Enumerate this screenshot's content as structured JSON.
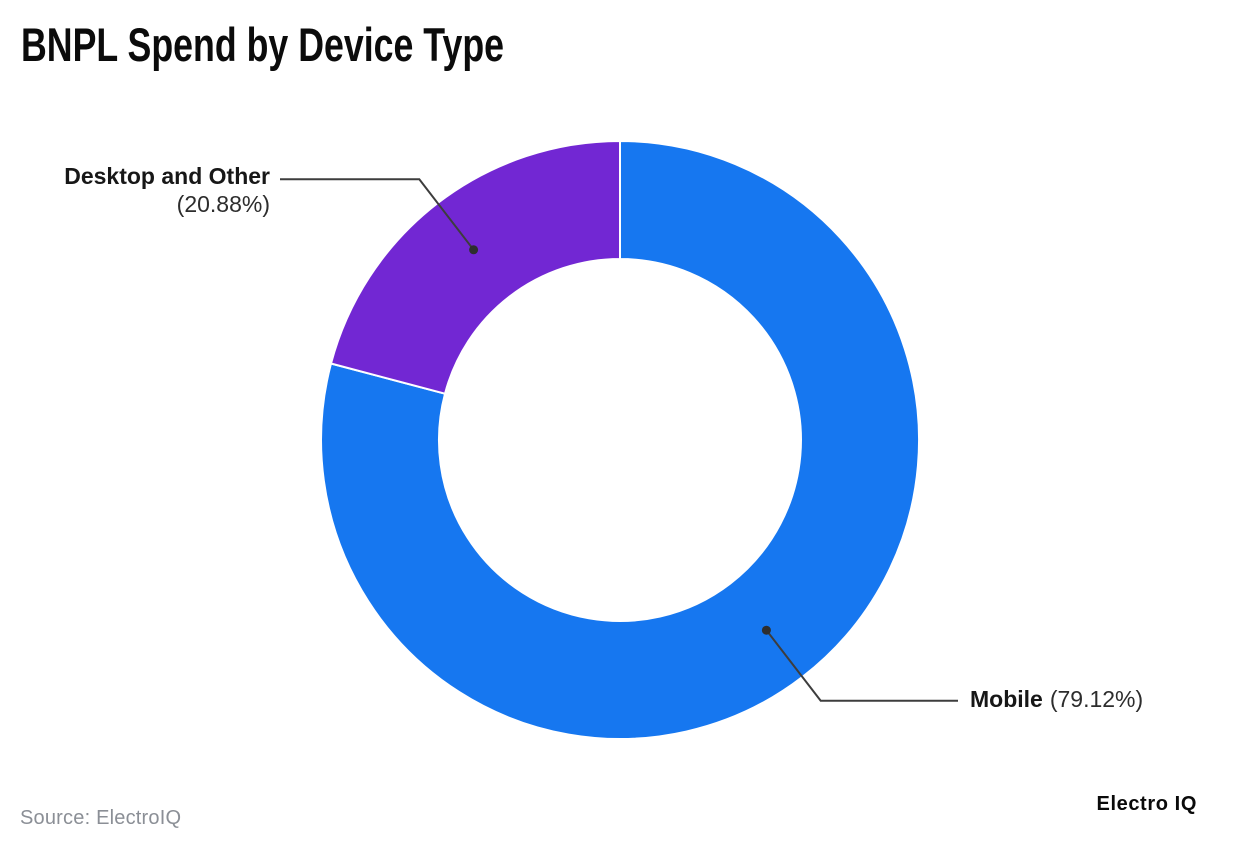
{
  "title": "BNPL Spend by Device Type",
  "source_note": "Source: ElectroIQ",
  "brand": "Electro IQ",
  "chart_data": {
    "type": "pie",
    "subtype": "donut",
    "title": "BNPL Spend by Device Type",
    "start_angle_deg": 0,
    "direction": "clockwise",
    "legend_position": "callout-labels",
    "separator_color": "#ffffff",
    "leader_line_color": "#3d3d3d",
    "leader_dot_color": "#2e2e2e",
    "slices": [
      {
        "label": "Mobile",
        "value": 79.12,
        "pct_label": "(79.12%)",
        "color": "#1677F0"
      },
      {
        "label": "Desktop and Other",
        "value": 20.88,
        "pct_label": "(20.88%)",
        "color": "#7227D3"
      }
    ]
  }
}
